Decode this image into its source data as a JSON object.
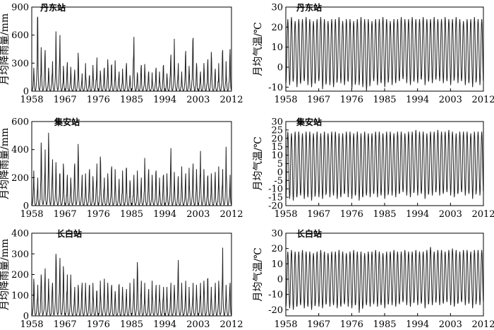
{
  "chart_data": [
    {
      "type": "line",
      "title": "丹东站",
      "xlabel": "",
      "ylabel": "月均降雨量/mm",
      "xlim": [
        1958,
        2012
      ],
      "ylim": [
        0,
        900
      ],
      "xticks": [
        "1958",
        "1967",
        "1976",
        "1985",
        "1994",
        "2003",
        "2012"
      ],
      "yticks": [
        "0",
        "300",
        "600",
        "900"
      ],
      "series": [
        {
          "x_start": 1958,
          "x_end": 2012,
          "period_years": 1,
          "values_monthly_pattern": [
            5,
            10,
            20,
            50,
            90,
            140,
            250,
            210,
            100,
            40,
            20,
            8
          ],
          "annual_peak_values": [
            250,
            790,
            470,
            440,
            250,
            320,
            640,
            600,
            270,
            310,
            260,
            230,
            410,
            190,
            300,
            170,
            280,
            360,
            220,
            250,
            340,
            280,
            330,
            210,
            240,
            300,
            170,
            580,
            200,
            280,
            290,
            210,
            200,
            250,
            210,
            280,
            190,
            390,
            560,
            300,
            210,
            430,
            270,
            570,
            300,
            210,
            300,
            340,
            420,
            240,
            300,
            440,
            320,
            450,
            330
          ],
          "min": 0
        }
      ]
    },
    {
      "type": "line",
      "title": "丹东站",
      "xlabel": "",
      "ylabel": "月均气温/℃",
      "xlim": [
        1958,
        2012
      ],
      "ylim": [
        -12,
        30
      ],
      "xticks": [
        "1958",
        "1967",
        "1976",
        "1985",
        "1994",
        "2003",
        "2012"
      ],
      "yticks": [
        "-10",
        "0",
        "10",
        "20",
        "30"
      ],
      "series": [
        {
          "x_start": 1958,
          "x_end": 2012,
          "period_years": 1,
          "summer_peak": 24,
          "winter_trough": -8,
          "annual_peaks": [
            24,
            25,
            23,
            24,
            24,
            25,
            24,
            23,
            24,
            25,
            24,
            23,
            24,
            24,
            25,
            23,
            24,
            24,
            23,
            24,
            25,
            24,
            24,
            23,
            24,
            24,
            25,
            24,
            23,
            24,
            24,
            25,
            24,
            24,
            25,
            24,
            24,
            25,
            24,
            24,
            25,
            24,
            24,
            25,
            24,
            24,
            25,
            24,
            23,
            24,
            24,
            25,
            24,
            24
          ],
          "annual_troughs": [
            -8,
            -9,
            -7,
            -10,
            -8,
            -7,
            -9,
            -10,
            -8,
            -7,
            -11,
            -8,
            -9,
            -10,
            -7,
            -8,
            -9,
            -7,
            -11,
            -8,
            -9,
            -10,
            -12,
            -8,
            -7,
            -9,
            -8,
            -10,
            -7,
            -9,
            -8,
            -7,
            -6,
            -8,
            -9,
            -7,
            -8,
            -6,
            -9,
            -7,
            -8,
            -6,
            -7,
            -8,
            -7,
            -9,
            -6,
            -8,
            -7,
            -9,
            -8,
            -10,
            -7,
            -9
          ]
        }
      ]
    },
    {
      "type": "line",
      "title": "集安站",
      "xlabel": "",
      "ylabel": "月均降雨量/mm",
      "xlim": [
        1958,
        2012
      ],
      "ylim": [
        0,
        600
      ],
      "xticks": [
        "1958",
        "1967",
        "1976",
        "1985",
        "1994",
        "2003",
        "2012"
      ],
      "yticks": [
        "0",
        "200",
        "400",
        "600"
      ],
      "series": [
        {
          "x_start": 1958,
          "x_end": 2012,
          "period_years": 1,
          "values_monthly_pattern": [
            5,
            10,
            20,
            40,
            80,
            130,
            230,
            200,
            90,
            35,
            18,
            6
          ],
          "annual_peak_values": [
            250,
            200,
            450,
            400,
            520,
            330,
            310,
            230,
            300,
            220,
            200,
            300,
            440,
            220,
            230,
            260,
            210,
            300,
            350,
            200,
            230,
            280,
            260,
            190,
            250,
            270,
            180,
            220,
            250,
            200,
            340,
            260,
            220,
            250,
            200,
            220,
            230,
            410,
            240,
            210,
            280,
            230,
            270,
            300,
            260,
            390,
            260,
            210,
            230,
            240,
            280,
            260,
            420,
            220,
            340
          ],
          "min": 0
        }
      ]
    },
    {
      "type": "line",
      "title": "集安站",
      "xlabel": "",
      "ylabel": "月均气温/℃",
      "xlim": [
        1958,
        2012
      ],
      "ylim": [
        -20,
        30
      ],
      "xticks": [
        "1958",
        "1967",
        "1976",
        "1985",
        "1994",
        "2003",
        "2012"
      ],
      "yticks": [
        "-20",
        "-15",
        "-10",
        "-5",
        "0",
        "5",
        "10",
        "15",
        "20",
        "25",
        "30"
      ],
      "series": [
        {
          "x_start": 1958,
          "x_end": 2012,
          "period_years": 1,
          "annual_peaks": [
            24,
            23,
            24,
            24,
            23,
            24,
            24,
            23,
            24,
            23,
            24,
            23,
            24,
            24,
            23,
            23,
            24,
            24,
            23,
            24,
            23,
            24,
            23,
            23,
            24,
            24,
            23,
            24,
            24,
            23,
            24,
            24,
            23,
            24,
            24,
            25,
            24,
            24,
            23,
            24,
            24,
            25,
            24,
            24,
            25,
            24,
            23,
            24,
            24,
            24,
            23,
            24,
            24,
            24
          ],
          "annual_troughs": [
            -15,
            -16,
            -17,
            -15,
            -14,
            -16,
            -15,
            -17,
            -14,
            -15,
            -16,
            -13,
            -15,
            -14,
            -16,
            -15,
            -13,
            -15,
            -16,
            -14,
            -17,
            -15,
            -14,
            -15,
            -13,
            -15,
            -14,
            -16,
            -13,
            -14,
            -15,
            -13,
            -12,
            -14,
            -15,
            -12,
            -14,
            -13,
            -16,
            -13,
            -14,
            -12,
            -14,
            -13,
            -12,
            -14,
            -15,
            -13,
            -12,
            -14,
            -13,
            -16,
            -12,
            -14
          ]
        }
      ]
    },
    {
      "type": "line",
      "title": "长白站",
      "xlabel": "",
      "ylabel": "月均降雨量/mm",
      "xlim": [
        1958,
        2012
      ],
      "ylim": [
        0,
        400
      ],
      "xticks": [
        "1958",
        "1967",
        "1976",
        "1985",
        "1994",
        "2003",
        "2012"
      ],
      "yticks": [
        "0",
        "100",
        "200",
        "300",
        "400"
      ],
      "series": [
        {
          "x_start": 1958,
          "x_end": 2012,
          "period_years": 1,
          "values_monthly_pattern": [
            5,
            8,
            15,
            30,
            60,
            110,
            170,
            150,
            80,
            30,
            12,
            5
          ],
          "annual_peak_values": [
            180,
            150,
            200,
            230,
            180,
            160,
            300,
            280,
            240,
            200,
            200,
            140,
            150,
            160,
            160,
            150,
            160,
            120,
            170,
            180,
            160,
            150,
            120,
            150,
            140,
            130,
            160,
            180,
            260,
            170,
            160,
            130,
            170,
            150,
            150,
            140,
            140,
            160,
            150,
            270,
            160,
            170,
            140,
            160,
            150,
            160,
            170,
            180,
            140,
            160,
            170,
            330,
            150,
            160,
            140
          ],
          "min": 0
        }
      ]
    },
    {
      "type": "line",
      "title": "长白站",
      "xlabel": "",
      "ylabel": "月均气温/℃",
      "xlim": [
        1958,
        2012
      ],
      "ylim": [
        -24,
        30
      ],
      "xticks": [
        "1958",
        "1967",
        "1976",
        "1985",
        "1994",
        "2003",
        "2012"
      ],
      "yticks": [
        "-20",
        "-10",
        "0",
        "10",
        "20",
        "30"
      ],
      "series": [
        {
          "x_start": 1958,
          "x_end": 2012,
          "period_years": 1,
          "annual_peaks": [
            18,
            19,
            18,
            18,
            19,
            18,
            18,
            17,
            18,
            19,
            18,
            17,
            18,
            18,
            19,
            18,
            17,
            18,
            19,
            18,
            18,
            17,
            18,
            18,
            19,
            18,
            17,
            18,
            18,
            19,
            18,
            18,
            19,
            18,
            18,
            19,
            18,
            18,
            19,
            21,
            18,
            19,
            19,
            18,
            19,
            20,
            19,
            18,
            19,
            19,
            18,
            19,
            19,
            19
          ],
          "annual_troughs": [
            -18,
            -19,
            -20,
            -18,
            -17,
            -19,
            -18,
            -20,
            -17,
            -18,
            -19,
            -16,
            -18,
            -17,
            -19,
            -18,
            -16,
            -18,
            -19,
            -17,
            -22,
            -18,
            -17,
            -18,
            -16,
            -18,
            -17,
            -19,
            -16,
            -17,
            -18,
            -16,
            -15,
            -17,
            -18,
            -15,
            -17,
            -16,
            -19,
            -16,
            -17,
            -15,
            -17,
            -16,
            -15,
            -17,
            -18,
            -16,
            -15,
            -17,
            -16,
            -19,
            -15,
            -17
          ]
        }
      ]
    }
  ]
}
